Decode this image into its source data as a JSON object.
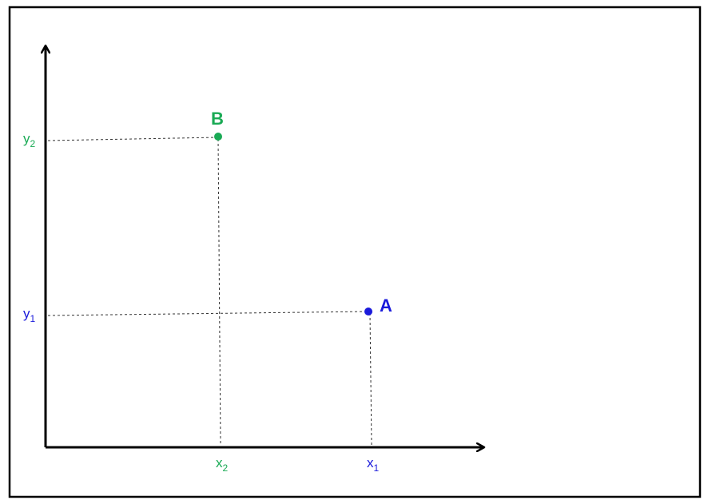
{
  "colors": {
    "point_a": "#1a1adb",
    "point_b": "#1aaa55",
    "axis": "#000000",
    "guide": "#333333"
  },
  "points": {
    "a": {
      "label": "A",
      "x_label": "x",
      "x_sub": "1",
      "y_label": "y",
      "y_sub": "1"
    },
    "b": {
      "label": "B",
      "x_label": "x",
      "x_sub": "2",
      "y_label": "y",
      "y_sub": "2"
    }
  }
}
